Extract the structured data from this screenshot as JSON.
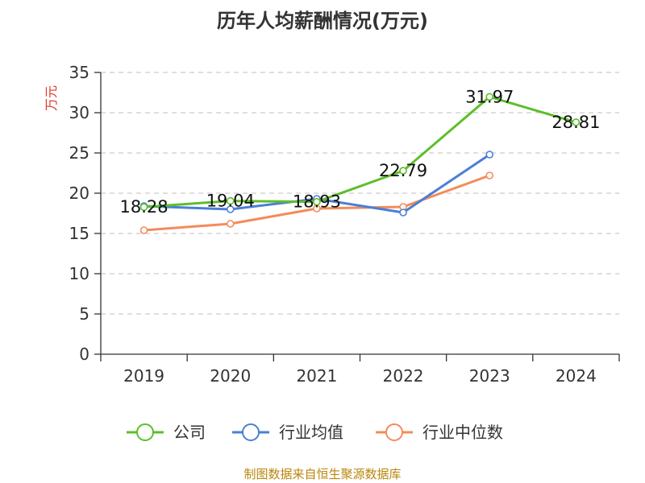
{
  "chart_data": {
    "type": "line",
    "title": "历年人均薪酬情况(万元)",
    "ylabel": "万元",
    "xlabel": "",
    "ylim": [
      0,
      35
    ],
    "yticks": [
      0,
      5,
      10,
      15,
      20,
      25,
      30,
      35
    ],
    "categories": [
      "2019",
      "2020",
      "2021",
      "2022",
      "2023",
      "2024"
    ],
    "grid": true,
    "legend_position": "bottom",
    "series": [
      {
        "name": "公司",
        "color": "#5cbf2a",
        "values": [
          18.28,
          19.04,
          18.93,
          22.79,
          31.97,
          28.81
        ],
        "labels": [
          "18.28",
          "19.04",
          "18.93",
          "22.79",
          "31.97",
          "28.81"
        ]
      },
      {
        "name": "行业均值",
        "color": "#4a7fd6",
        "values": [
          18.4,
          18.0,
          19.3,
          17.6,
          24.8,
          null
        ],
        "labels": []
      },
      {
        "name": "行业中位数",
        "color": "#f48b5a",
        "values": [
          15.4,
          16.2,
          18.1,
          18.3,
          22.2,
          null
        ],
        "labels": []
      }
    ]
  },
  "source": "制图数据来自恒生聚源数据库"
}
